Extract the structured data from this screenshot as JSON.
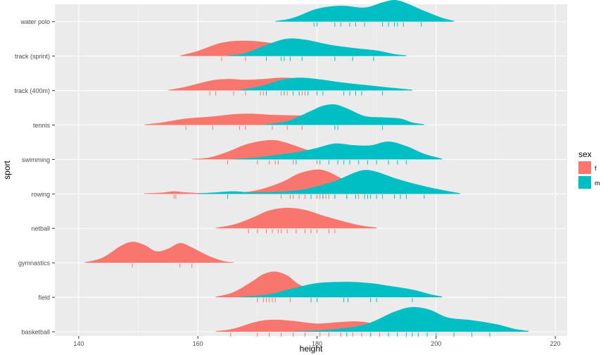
{
  "chart_data": {
    "type": "ridgeline",
    "xlabel": "height",
    "ylabel": "sport",
    "xlim": [
      136,
      222
    ],
    "x_ticks": [
      140,
      160,
      180,
      200,
      220
    ],
    "grid": true,
    "legend": {
      "title": "sex",
      "position": "right",
      "entries": [
        {
          "key": "f",
          "label": "f",
          "color": "#F8766D"
        },
        {
          "key": "m",
          "label": "m",
          "color": "#00BFC4"
        }
      ]
    },
    "categories": [
      "basketball",
      "field",
      "gymnastics",
      "netball",
      "rowing",
      "swimming",
      "tennis",
      "track (400m)",
      "track (sprint)",
      "water polo"
    ],
    "series": [
      {
        "sport": "basketball",
        "sex": "f",
        "density": [
          [
            163,
            0.02
          ],
          [
            166,
            0.12
          ],
          [
            170,
            0.4
          ],
          [
            173,
            0.47
          ],
          [
            176,
            0.42
          ],
          [
            180,
            0.32
          ],
          [
            184,
            0.38
          ],
          [
            187,
            0.4
          ],
          [
            190,
            0.3
          ],
          [
            193,
            0.14
          ],
          [
            197,
            0.05
          ],
          [
            200,
            0.01
          ]
        ],
        "rug": [
          165.5,
          170,
          172,
          174,
          176,
          178,
          180.5,
          182,
          184,
          186,
          187.5,
          189,
          190.5,
          192
        ]
      },
      {
        "sport": "basketball",
        "sex": "m",
        "density": [
          [
            176,
            0.01
          ],
          [
            182,
            0.08
          ],
          [
            188,
            0.28
          ],
          [
            193,
            0.78
          ],
          [
            196,
            0.96
          ],
          [
            199,
            0.85
          ],
          [
            202,
            0.55
          ],
          [
            206,
            0.45
          ],
          [
            210,
            0.3
          ],
          [
            213,
            0.12
          ],
          [
            215.5,
            0.03
          ]
        ],
        "rug": [
          185,
          189,
          192,
          193.5,
          195,
          196,
          197,
          198.5,
          200,
          203,
          206,
          209
        ]
      },
      {
        "sport": "field",
        "sex": "f",
        "density": [
          [
            163,
            0.02
          ],
          [
            166,
            0.2
          ],
          [
            169,
            0.6
          ],
          [
            171,
            0.9
          ],
          [
            173,
            1.0
          ],
          [
            175,
            0.85
          ],
          [
            177,
            0.5
          ],
          [
            180,
            0.24
          ],
          [
            183,
            0.08
          ],
          [
            186,
            0.02
          ]
        ],
        "rug": [
          170,
          171,
          171.5,
          172,
          172.5,
          173,
          175.5
        ]
      },
      {
        "sport": "field",
        "sex": "m",
        "density": [
          [
            167,
            0.02
          ],
          [
            172,
            0.12
          ],
          [
            176,
            0.35
          ],
          [
            180,
            0.55
          ],
          [
            185,
            0.6
          ],
          [
            189,
            0.55
          ],
          [
            192,
            0.45
          ],
          [
            196,
            0.3
          ],
          [
            199,
            0.12
          ],
          [
            201,
            0.03
          ]
        ],
        "rug": [
          179,
          180,
          184.5,
          185.2,
          189,
          190,
          196
        ]
      },
      {
        "sport": "gymnastics",
        "sex": "f",
        "density": [
          [
            141,
            0.02
          ],
          [
            144,
            0.2
          ],
          [
            147,
            0.65
          ],
          [
            149,
            0.82
          ],
          [
            151,
            0.7
          ],
          [
            153,
            0.45
          ],
          [
            155,
            0.55
          ],
          [
            157,
            0.77
          ],
          [
            159,
            0.6
          ],
          [
            162,
            0.25
          ],
          [
            164.5,
            0.06
          ],
          [
            166,
            0.02
          ]
        ],
        "rug": [
          149,
          157,
          159
        ]
      },
      {
        "sport": "netball",
        "sex": "f",
        "density": [
          [
            163,
            0.02
          ],
          [
            166,
            0.15
          ],
          [
            169,
            0.4
          ],
          [
            172,
            0.7
          ],
          [
            175,
            0.8
          ],
          [
            178,
            0.72
          ],
          [
            181,
            0.5
          ],
          [
            184,
            0.3
          ],
          [
            187,
            0.13
          ],
          [
            190,
            0.03
          ]
        ],
        "rug": [
          168.5,
          170,
          171.5,
          172.5,
          173.5,
          174,
          175,
          176.5,
          178,
          179,
          180,
          182,
          183
        ]
      },
      {
        "sport": "rowing",
        "sex": "f",
        "density": [
          [
            151,
            0.02
          ],
          [
            154,
            0.05
          ],
          [
            156,
            0.1
          ],
          [
            158,
            0.06
          ],
          [
            161,
            0.03
          ],
          [
            166,
            0.04
          ],
          [
            170,
            0.15
          ],
          [
            174,
            0.45
          ],
          [
            177,
            0.8
          ],
          [
            180,
            0.95
          ],
          [
            182,
            0.85
          ],
          [
            185,
            0.5
          ],
          [
            188,
            0.22
          ],
          [
            192,
            0.08
          ],
          [
            195,
            0.02
          ]
        ],
        "rug": [
          156,
          156.3,
          174,
          175.5,
          176,
          177,
          178,
          179,
          180,
          180.5,
          181,
          181.5,
          182,
          183,
          185,
          187
        ]
      },
      {
        "sport": "rowing",
        "sex": "m",
        "density": [
          [
            160,
            0.02
          ],
          [
            163,
            0.06
          ],
          [
            166,
            0.1
          ],
          [
            169,
            0.06
          ],
          [
            173,
            0.08
          ],
          [
            177,
            0.15
          ],
          [
            180,
            0.3
          ],
          [
            183,
            0.5
          ],
          [
            186,
            0.8
          ],
          [
            188,
            0.93
          ],
          [
            190,
            0.86
          ],
          [
            193,
            0.62
          ],
          [
            196,
            0.42
          ],
          [
            200,
            0.2
          ],
          [
            204,
            0.03
          ]
        ],
        "rug": [
          165,
          179,
          181,
          183,
          185,
          186.5,
          188,
          188.5,
          189,
          190,
          191,
          193,
          194,
          195,
          198
        ]
      },
      {
        "sport": "swimming",
        "sex": "f",
        "density": [
          [
            159,
            0.02
          ],
          [
            162,
            0.08
          ],
          [
            165,
            0.3
          ],
          [
            168,
            0.58
          ],
          [
            171,
            0.73
          ],
          [
            173,
            0.75
          ],
          [
            175,
            0.64
          ],
          [
            178,
            0.4
          ],
          [
            181,
            0.2
          ],
          [
            184,
            0.07
          ],
          [
            187,
            0.02
          ]
        ],
        "rug": [
          165,
          170,
          172,
          173,
          173.5,
          176,
          180
        ]
      },
      {
        "sport": "swimming",
        "sex": "m",
        "density": [
          [
            166,
            0.02
          ],
          [
            170,
            0.08
          ],
          [
            174,
            0.2
          ],
          [
            177,
            0.3
          ],
          [
            180,
            0.45
          ],
          [
            183,
            0.62
          ],
          [
            186,
            0.56
          ],
          [
            189,
            0.55
          ],
          [
            192,
            0.7
          ],
          [
            195,
            0.52
          ],
          [
            198,
            0.22
          ],
          [
            201,
            0.03
          ]
        ],
        "rug": [
          176.5,
          180.5,
          182,
          183.5,
          184.5,
          185.5,
          187,
          188.5,
          190,
          192,
          193.5,
          195
        ]
      },
      {
        "sport": "tennis",
        "sex": "f",
        "density": [
          [
            151,
            0.02
          ],
          [
            154,
            0.1
          ],
          [
            158,
            0.25
          ],
          [
            162,
            0.32
          ],
          [
            166,
            0.42
          ],
          [
            169,
            0.44
          ],
          [
            172,
            0.4
          ],
          [
            175,
            0.38
          ],
          [
            179,
            0.35
          ],
          [
            182,
            0.2
          ],
          [
            185,
            0.06
          ],
          [
            187,
            0.02
          ]
        ],
        "rug": [
          158,
          162.5,
          167,
          168,
          172.5,
          175,
          177.5
        ]
      },
      {
        "sport": "tennis",
        "sex": "m",
        "density": [
          [
            171,
            0.02
          ],
          [
            175,
            0.15
          ],
          [
            179,
            0.55
          ],
          [
            181,
            0.75
          ],
          [
            183,
            0.8
          ],
          [
            185,
            0.65
          ],
          [
            188,
            0.35
          ],
          [
            191,
            0.3
          ],
          [
            194,
            0.25
          ],
          [
            196,
            0.1
          ],
          [
            198,
            0.03
          ]
        ],
        "rug": [
          183,
          183.5,
          191
        ]
      },
      {
        "sport": "track (400m)",
        "sex": "f",
        "density": [
          [
            155,
            0.02
          ],
          [
            158,
            0.15
          ],
          [
            162,
            0.38
          ],
          [
            165,
            0.45
          ],
          [
            168,
            0.42
          ],
          [
            171,
            0.45
          ],
          [
            174,
            0.5
          ],
          [
            177,
            0.45
          ],
          [
            180,
            0.22
          ],
          [
            183,
            0.06
          ],
          [
            186,
            0.02
          ]
        ],
        "rug": [
          162,
          163,
          166,
          168,
          170.5,
          171,
          174,
          175,
          177.5,
          178
        ]
      },
      {
        "sport": "track (400m)",
        "sex": "m",
        "density": [
          [
            167,
            0.02
          ],
          [
            171,
            0.2
          ],
          [
            174,
            0.42
          ],
          [
            177,
            0.5
          ],
          [
            180,
            0.45
          ],
          [
            184,
            0.32
          ],
          [
            188,
            0.22
          ],
          [
            192,
            0.12
          ],
          [
            196,
            0.03
          ]
        ],
        "rug": [
          171.5,
          174.5,
          176,
          177,
          178.5,
          180,
          181,
          184.5,
          185.5,
          186.5,
          187.5,
          191
        ]
      },
      {
        "sport": "track (sprint)",
        "sex": "f",
        "density": [
          [
            157,
            0.02
          ],
          [
            160,
            0.2
          ],
          [
            164,
            0.52
          ],
          [
            168,
            0.6
          ],
          [
            172,
            0.52
          ],
          [
            176,
            0.35
          ],
          [
            180,
            0.18
          ],
          [
            184,
            0.06
          ],
          [
            187,
            0.02
          ]
        ],
        "rug": [
          164,
          168
        ]
      },
      {
        "sport": "track (sprint)",
        "sex": "m",
        "density": [
          [
            165,
            0.02
          ],
          [
            168,
            0.12
          ],
          [
            172,
            0.48
          ],
          [
            175,
            0.68
          ],
          [
            178,
            0.64
          ],
          [
            182,
            0.45
          ],
          [
            186,
            0.32
          ],
          [
            190,
            0.22
          ],
          [
            193,
            0.08
          ],
          [
            195,
            0.03
          ]
        ],
        "rug": [
          171.5,
          174,
          174.5,
          175.5,
          177.5,
          183,
          186,
          189.5
        ]
      },
      {
        "sport": "water polo",
        "sex": "m",
        "density": [
          [
            173,
            0.02
          ],
          [
            176,
            0.15
          ],
          [
            180,
            0.5
          ],
          [
            184,
            0.62
          ],
          [
            188,
            0.55
          ],
          [
            191,
            0.75
          ],
          [
            193,
            0.84
          ],
          [
            195,
            0.72
          ],
          [
            198,
            0.42
          ],
          [
            201,
            0.15
          ],
          [
            203,
            0.03
          ]
        ],
        "rug": [
          179.5,
          180,
          183,
          184,
          185.5,
          186.5,
          188,
          191,
          192,
          193,
          193.5,
          194.5,
          197.5
        ]
      }
    ]
  }
}
